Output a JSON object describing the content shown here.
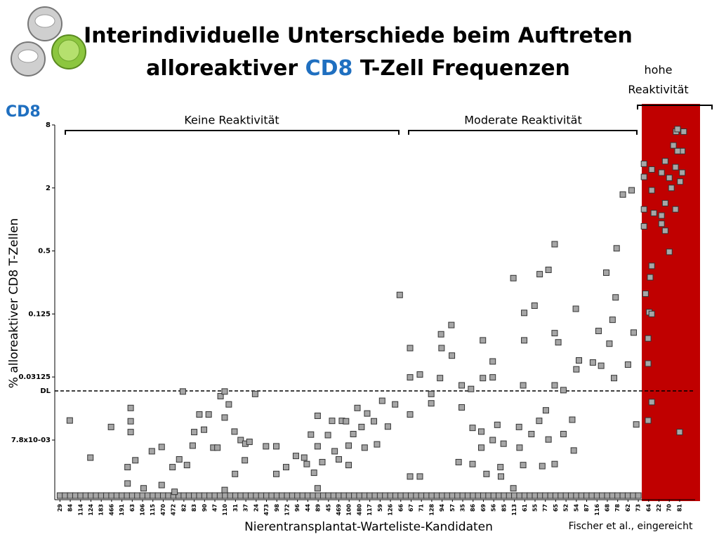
{
  "chart_data": {
    "type": "scatter",
    "title_line1": "Interindividuelle Unterschiede beim Auftreten",
    "title_line2_start": "alloreaktiver ",
    "title_highlight": "CD8",
    "title_line2_end": " T-Zell Frequenzen",
    "panel_label": "CD8",
    "y_label": "% alloreaktiver CD8 T-Zellen",
    "x_label": "Nierentransplantat-Warteliste-Kandidaten",
    "source": "Fischer et al., eingereicht",
    "groups": [
      "Keine Reaktivität",
      "Moderate Reaktivität",
      "hohe Reaktivität"
    ],
    "detection_limit": {
      "label": "DL",
      "value": 0.023
    },
    "y_log": true,
    "ylim": [
      0.0021,
      8
    ],
    "yticks": [
      8,
      2,
      0.5,
      0.125,
      {
        "value": 0.03125,
        "label": "0.03125"
      },
      {
        "value": 0.0078,
        "label": "7.8x10-03"
      }
    ],
    "xlim": [
      -1,
      123
    ],
    "xticks": [
      {
        "value": 0,
        "label": "29"
      },
      {
        "value": 2,
        "label": "84"
      },
      {
        "value": 4,
        "label": "114"
      },
      {
        "value": 6,
        "label": "124"
      },
      {
        "value": 8,
        "label": "183"
      },
      {
        "value": 10,
        "label": "466"
      },
      {
        "value": 12,
        "label": "191"
      },
      {
        "value": 14,
        "label": "63"
      },
      {
        "value": 16,
        "label": "106"
      },
      {
        "value": 18,
        "label": "115"
      },
      {
        "value": 20,
        "label": "470"
      },
      {
        "value": 22,
        "label": "472"
      },
      {
        "value": 24,
        "label": "82"
      },
      {
        "value": 26,
        "label": "83"
      },
      {
        "value": 28,
        "label": "90"
      },
      {
        "value": 30,
        "label": "47"
      },
      {
        "value": 32,
        "label": "110"
      },
      {
        "value": 34,
        "label": "31"
      },
      {
        "value": 36,
        "label": "37"
      },
      {
        "value": 38,
        "label": "24"
      },
      {
        "value": 40,
        "label": "473"
      },
      {
        "value": 42,
        "label": "98"
      },
      {
        "value": 44,
        "label": "172"
      },
      {
        "value": 46,
        "label": "96"
      },
      {
        "value": 48,
        "label": "44"
      },
      {
        "value": 50,
        "label": "89"
      },
      {
        "value": 52,
        "label": "45"
      },
      {
        "value": 54,
        "label": "469"
      },
      {
        "value": 56,
        "label": "100"
      },
      {
        "value": 58,
        "label": "480"
      },
      {
        "value": 60,
        "label": "117"
      },
      {
        "value": 62,
        "label": "59"
      },
      {
        "value": 64,
        "label": "126"
      },
      {
        "value": 66,
        "label": "66"
      },
      {
        "value": 68,
        "label": "67"
      },
      {
        "value": 70,
        "label": "71"
      },
      {
        "value": 72,
        "label": "128"
      },
      {
        "value": 74,
        "label": "94"
      },
      {
        "value": 76,
        "label": "57"
      },
      {
        "value": 78,
        "label": "35"
      },
      {
        "value": 80,
        "label": "86"
      },
      {
        "value": 82,
        "label": "69"
      },
      {
        "value": 84,
        "label": "56"
      },
      {
        "value": 86,
        "label": "85"
      },
      {
        "value": 88,
        "label": "113"
      },
      {
        "value": 90,
        "label": "61"
      },
      {
        "value": 92,
        "label": "55"
      },
      {
        "value": 94,
        "label": "77"
      },
      {
        "value": 96,
        "label": "65"
      },
      {
        "value": 98,
        "label": "52"
      },
      {
        "value": 100,
        "label": "54"
      },
      {
        "value": 102,
        "label": "87"
      },
      {
        "value": 104,
        "label": "116"
      },
      {
        "value": 106,
        "label": "68"
      },
      {
        "value": 108,
        "label": "78"
      },
      {
        "value": 110,
        "label": "62"
      },
      {
        "value": 112,
        "label": "73"
      },
      {
        "value": 114,
        "label": "64"
      },
      {
        "value": 116,
        "label": "22"
      },
      {
        "value": 118,
        "label": "70"
      },
      {
        "value": 120,
        "label": "81"
      }
    ],
    "series": [
      {
        "color": "#a6a6a6",
        "x": [
          0,
          1,
          2,
          3,
          4,
          5,
          6,
          7,
          8,
          9,
          10,
          11,
          12,
          13,
          14,
          15,
          16,
          17,
          18,
          19,
          20,
          21,
          22,
          23,
          24,
          25,
          26,
          27,
          28,
          29,
          30,
          31,
          32,
          33,
          34,
          35,
          36,
          37,
          38,
          39,
          40,
          41,
          42,
          43,
          44,
          45,
          46,
          47,
          48,
          49,
          50,
          51,
          52,
          53,
          54,
          55,
          56,
          57,
          58,
          59,
          60,
          61,
          62,
          63,
          64,
          65,
          66,
          67,
          68,
          69,
          70,
          71,
          72,
          73,
          74,
          75,
          76,
          77,
          78,
          79,
          80,
          81,
          82,
          83,
          84,
          85,
          86,
          87,
          88,
          89,
          90,
          91,
          92,
          93,
          94,
          95,
          96,
          97,
          98,
          99,
          100,
          101,
          102,
          103,
          104,
          105,
          106,
          107,
          108,
          109,
          110,
          111,
          112
        ],
        "values": [
          0.0023,
          0.0023,
          0.0023,
          0.0023,
          0.0023,
          0.0023,
          0.0023,
          0.0023,
          0.0023,
          0.0023,
          0.0023,
          0.0023,
          0.0023,
          0.0023,
          0.0023,
          0.0023,
          0.0023,
          0.0023,
          0.0023,
          0.0023,
          0.0023,
          0.0023,
          0.0023,
          0.0023,
          0.0023,
          0.0023,
          0.0023,
          0.0023,
          0.0023,
          0.0023,
          0.0023,
          0.0023,
          0.0023,
          0.0023,
          0.0023,
          0.0023,
          0.0023,
          0.0023,
          0.0023,
          0.0023,
          0.0023,
          0.0023,
          0.0023,
          0.0023,
          0.0023,
          0.0023,
          0.0023,
          0.0023,
          0.0023,
          0.0023,
          0.0023,
          0.0023,
          0.0023,
          0.0023,
          0.0023,
          0.0023,
          0.0023,
          0.0023,
          0.0023,
          0.0023,
          0.0023,
          0.0023,
          0.0023,
          0.0023,
          0.0023,
          0.0023,
          0.0023,
          0.0023,
          0.0023,
          0.0023,
          0.0023,
          0.0023,
          0.0023,
          0.0023,
          0.0023,
          0.0023,
          0.0023,
          0.0023,
          0.0023,
          0.0023,
          0.0023,
          0.0023,
          0.0023,
          0.0023,
          0.0023,
          0.0023,
          0.0023,
          0.0023,
          0.0023,
          0.0023,
          0.0023,
          0.0023,
          0.0023,
          0.0023,
          0.0023,
          0.0023,
          0.0023,
          0.0023,
          0.0023,
          0.0023,
          0.0023,
          0.0023,
          0.0023,
          0.0023,
          0.0023,
          0.0023,
          0.0023,
          0.0023,
          0.0023,
          0.0023,
          0.0023,
          0.0023,
          0.0023
        ]
      },
      {
        "color": "#a6a6a6",
        "x": [
          1.9,
          5.9,
          9.9,
          13.1,
          13.7,
          13.7,
          13.7,
          13.1,
          14.6,
          16.2,
          17.8,
          19.7,
          19.7,
          21.8,
          22.2,
          23.1,
          23.8,
          24.6,
          25.7,
          26,
          27,
          27.9,
          28.8,
          29.7,
          30.5,
          31.1,
          31.9,
          31.9,
          31.9,
          32.7,
          33.8,
          33.9,
          35,
          35.8,
          35.9,
          36.7,
          37.8,
          39.9,
          41.9,
          41.9,
          43.8,
          45.7,
          47.3,
          47.8,
          48.6,
          49.2,
          49.9,
          49.9,
          49.9,
          50.8,
          51.9,
          52.7,
          53.2,
          54,
          54.6,
          55.4,
          55.9,
          55.9,
          56.8,
          57.6,
          58.4,
          59,
          59.5,
          60.8,
          61.4,
          62.4,
          63.5,
          64.9,
          65.8,
          67.8,
          67.8,
          67.8,
          67.8,
          69.7,
          69.7,
          71.9,
          71.9,
          73.6,
          73.8,
          73.9,
          75.8,
          75.9,
          77.8,
          77.8,
          77.2,
          79.6,
          79.9,
          79.9,
          81.9,
          81.9,
          81.6,
          81.6,
          82.6,
          83.8,
          83.8,
          83.8,
          84.7,
          85.3,
          85.4,
          85.9,
          87.8,
          87.8,
          88.9,
          89,
          89.7,
          89.9,
          89.9,
          89.7,
          91.3,
          91.9,
          92.9,
          92.8,
          93.4,
          94.1,
          94.6,
          94.6,
          95.8,
          95.8,
          95.8,
          95.8,
          96.5,
          97.5,
          97.5,
          99.2,
          99.9,
          100,
          100.5,
          99.5,
          103.2,
          104.3,
          104.8,
          105.8,
          106.4,
          107,
          107.3,
          107.6,
          107.8,
          109,
          110,
          110.7,
          111.1,
          111.6,
          113.1,
          113.1,
          113.1,
          113.1,
          113.4,
          113.9,
          113.9,
          113.9,
          114.1,
          114.3,
          114.6,
          114.6,
          114.6,
          114.6,
          114.6,
          115,
          116.5,
          116.5,
          116.5,
          117.2,
          117.2,
          117.2,
          118,
          118,
          118.4,
          118.8,
          119.2,
          119.3,
          119.6,
          120,
          120.1,
          120.5,
          120.5,
          120.8,
          119.2,
          119.6
        ],
        "values": [
          0.012,
          0.0053,
          0.0104,
          0.0043,
          0.0158,
          0.0118,
          0.0093,
          0.003,
          0.005,
          0.0027,
          0.0061,
          0.0067,
          0.0029,
          0.0043,
          0.0025,
          0.0051,
          0.0227,
          0.0045,
          0.0069,
          0.0093,
          0.0137,
          0.0098,
          0.0137,
          0.0066,
          0.0066,
          0.0205,
          0.0227,
          0.0128,
          0.0026,
          0.0171,
          0.0094,
          0.0037,
          0.0078,
          0.005,
          0.0072,
          0.0075,
          0.0215,
          0.0068,
          0.0068,
          0.0037,
          0.0043,
          0.0055,
          0.0053,
          0.0046,
          0.0088,
          0.0038,
          0.0133,
          0.0068,
          0.0027,
          0.0048,
          0.0087,
          0.0119,
          0.0061,
          0.0051,
          0.0119,
          0.0118,
          0.0069,
          0.0045,
          0.0089,
          0.0158,
          0.0104,
          0.0066,
          0.014,
          0.0118,
          0.0071,
          0.0185,
          0.0105,
          0.0171,
          0.19,
          0.059,
          0.031,
          0.0137,
          0.0035,
          0.033,
          0.0035,
          0.0215,
          0.0175,
          0.0305,
          0.08,
          0.059,
          0.098,
          0.05,
          0.026,
          0.016,
          0.0048,
          0.024,
          0.0102,
          0.0046,
          0.07,
          0.0305,
          0.0094,
          0.0066,
          0.0037,
          0.044,
          0.031,
          0.0078,
          0.0109,
          0.0043,
          0.0035,
          0.0072,
          0.275,
          0.0027,
          0.0104,
          0.0066,
          0.026,
          0.128,
          0.07,
          0.0045,
          0.0089,
          0.15,
          0.3,
          0.0119,
          0.0044,
          0.015,
          0.33,
          0.0079,
          0.082,
          0.026,
          0.0046,
          0.58,
          0.067,
          0.0234,
          0.0089,
          0.0122,
          0.14,
          0.037,
          0.045,
          0.0062,
          0.043,
          0.086,
          0.04,
          0.31,
          0.065,
          0.11,
          0.0305,
          0.18,
          0.53,
          1.73,
          0.041,
          1.9,
          0.083,
          0.011,
          3.4,
          2.55,
          1.25,
          0.86,
          0.195,
          0.073,
          0.042,
          0.012,
          0.13,
          0.28,
          3.0,
          1.9,
          0.36,
          0.125,
          0.018,
          1.15,
          2.8,
          1.09,
          0.91,
          3.6,
          1.43,
          0.78,
          0.49,
          2.5,
          2.0,
          5.1,
          3.16,
          6.9,
          7.3,
          0.0093,
          2.3,
          2.8,
          4.5,
          6.9,
          1.25,
          4.5
        ]
      }
    ]
  }
}
